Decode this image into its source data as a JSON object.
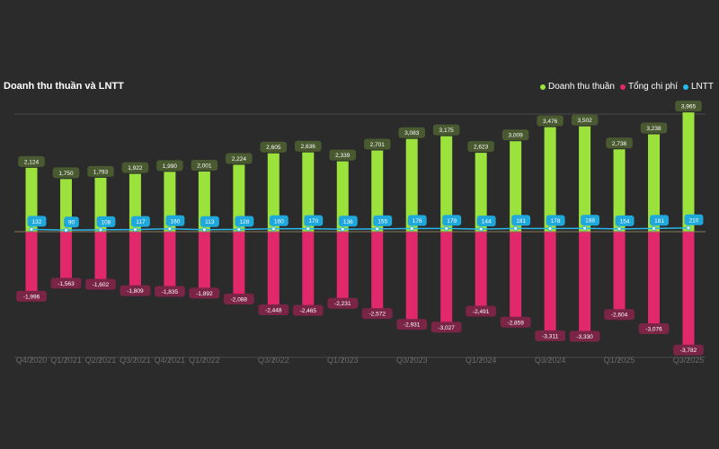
{
  "chart_data": {
    "type": "bar",
    "title": "Doanh thu thuần và LNTT",
    "categories": [
      "Q4/2020",
      "Q1/2021",
      "Q2/2021",
      "Q3/2021",
      "Q4/2021",
      "Q1/2022",
      "Q2/2022",
      "Q3/2022",
      "Q4/2022",
      "Q1/2023",
      "Q2/2023",
      "Q3/2023",
      "Q4/2023",
      "Q1/2024",
      "Q2/2024",
      "Q3/2024",
      "Q4/2024",
      "Q1/2025",
      "Q2/2025",
      "Q3/2025"
    ],
    "visible_tick_labels": [
      "Q4/2020",
      "Q1/2021",
      "Q2/2021",
      "Q3/2021",
      "Q4/2021",
      "Q1/2022",
      "Q3/2022",
      "Q1/2023",
      "Q3/2023",
      "Q1/2024",
      "Q3/2024",
      "Q1/2025",
      "Q3/2025"
    ],
    "series": [
      {
        "name": "Doanh thu thuần",
        "type": "bar",
        "color": "#9be33c",
        "label_bg": "#4a5a30",
        "values": [
          2124,
          1750,
          1793,
          1922,
          1990,
          2001,
          2224,
          2605,
          2636,
          2339,
          2701,
          3083,
          3175,
          2623,
          3009,
          3476,
          3502,
          2738,
          3238,
          3965
        ]
      },
      {
        "name": "Tổng chi phí",
        "type": "bar",
        "color": "#e0286a",
        "label_bg": "#7a2446",
        "values": [
          -1996,
          -1563,
          -1602,
          -1809,
          -1835,
          -1892,
          -2088,
          -2448,
          -2465,
          -2231,
          -2572,
          -2931,
          -3027,
          -2491,
          -2859,
          -3311,
          -3330,
          -2604,
          -3076,
          -3782
        ]
      },
      {
        "name": "LNTT",
        "type": "line",
        "color": "#29b6e8",
        "label_bg": "#1fa8dc",
        "values": [
          132,
          90,
          108,
          117,
          160,
          113,
          128,
          160,
          170,
          136,
          155,
          176,
          179,
          144,
          181,
          178,
          188,
          154,
          181,
          210
        ]
      }
    ],
    "legend_position": "top-right",
    "grid": false
  }
}
